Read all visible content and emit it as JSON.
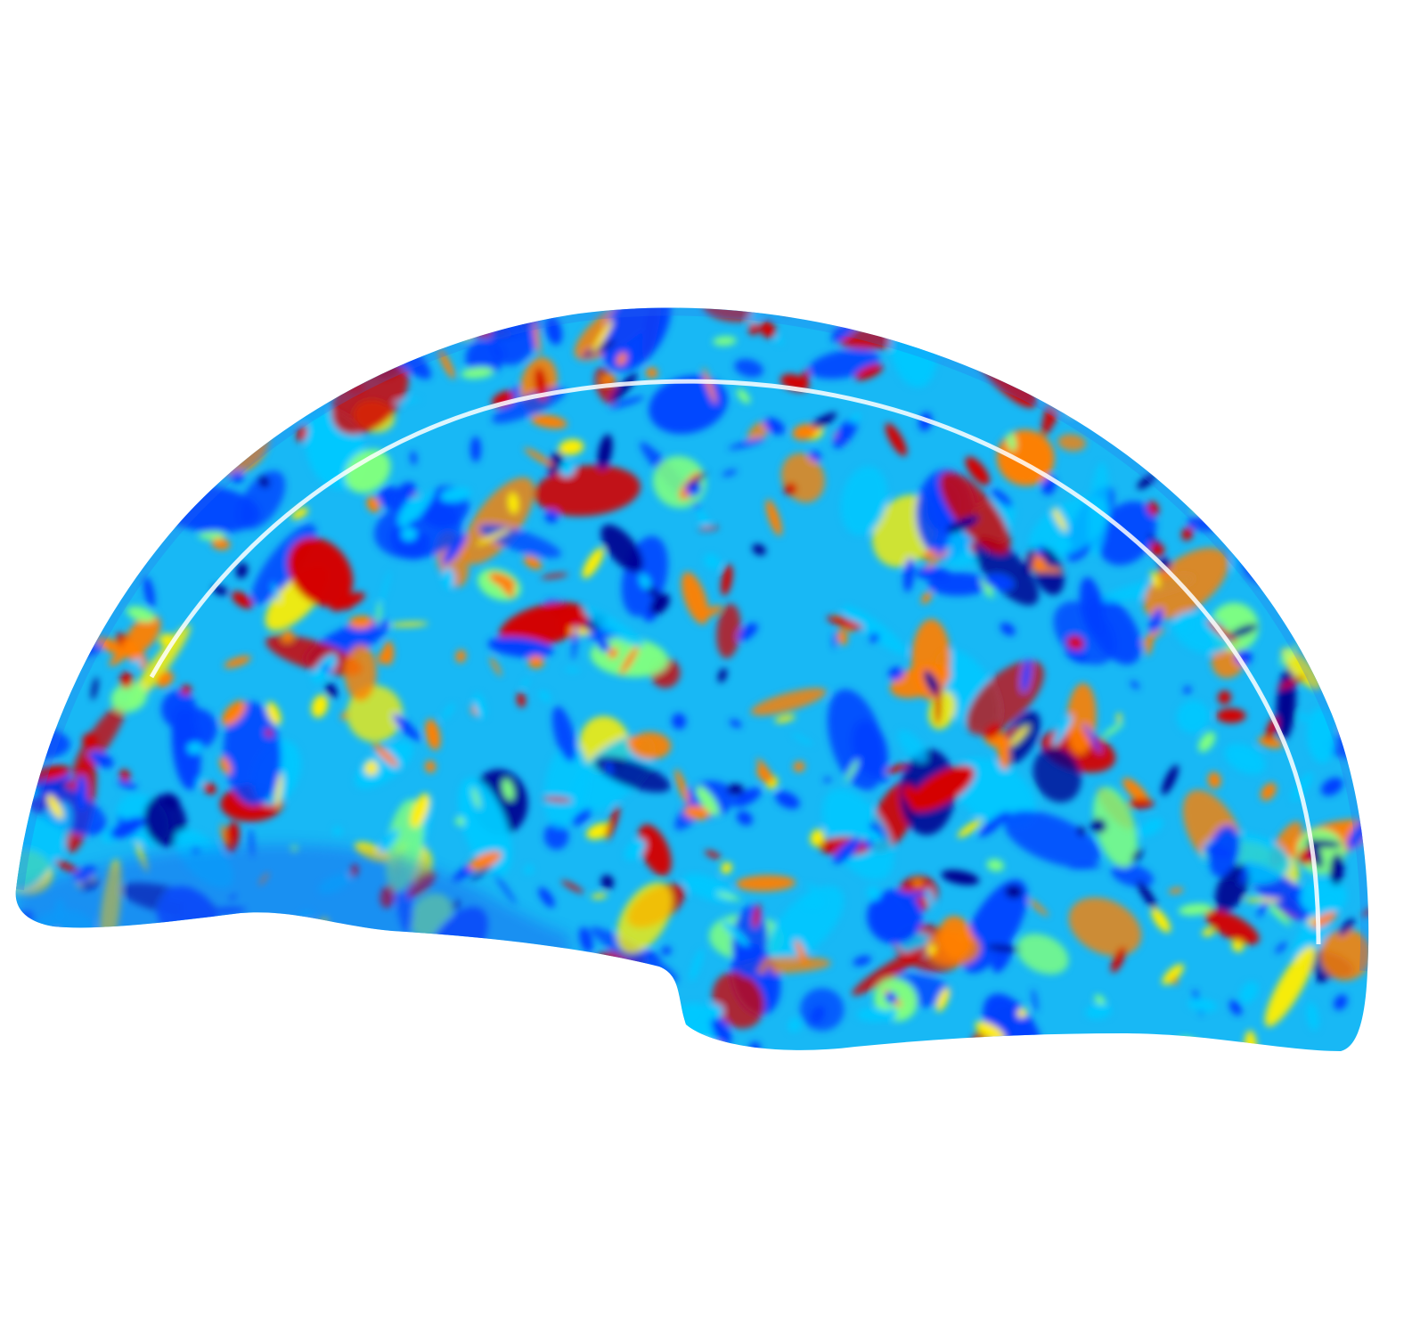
{
  "figure": {
    "background": "#ffffff",
    "colormap": "jet",
    "colormap_stops": [
      "#00008f",
      "#0040ff",
      "#00c8ff",
      "#80ff80",
      "#ffee00",
      "#ff8000",
      "#d40000"
    ],
    "dominant_colors": [
      "#0a3ff0",
      "#19c9f5",
      "#f5f522",
      "#ff7a12",
      "#d61a0a"
    ]
  }
}
